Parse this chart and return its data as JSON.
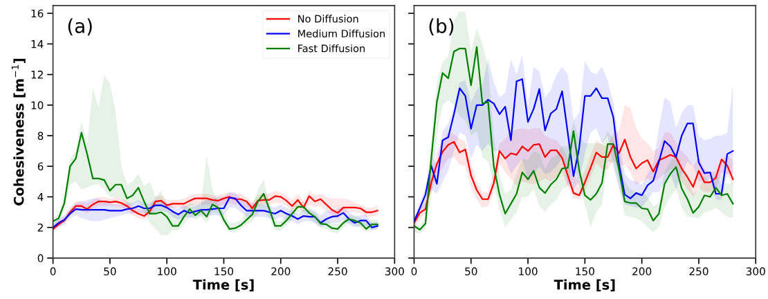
{
  "chart_data": [
    {
      "type": "line",
      "xlabel": "Time [s]",
      "ylabel": "Cohesiveness [m$^{−1}$]",
      "annotations": [
        "(a)"
      ],
      "xlim": [
        0,
        300
      ],
      "ylim": [
        0,
        16.5
      ],
      "xticks": [
        0,
        50,
        100,
        150,
        200,
        250,
        300
      ],
      "yticks": [
        0,
        2,
        4,
        6,
        8,
        10,
        12,
        14,
        16
      ],
      "grid": false,
      "legend": "top right",
      "marker": "none",
      "line_style": "solid",
      "x": [
        0,
        5,
        10,
        15,
        20,
        25,
        30,
        35,
        40,
        45,
        50,
        55,
        60,
        65,
        70,
        75,
        80,
        85,
        90,
        95,
        100,
        105,
        110,
        115,
        120,
        125,
        130,
        135,
        140,
        145,
        150,
        155,
        160,
        165,
        170,
        175,
        180,
        185,
        190,
        195,
        200,
        205,
        210,
        215,
        220,
        225,
        230,
        235,
        240,
        245,
        250,
        255,
        260,
        265,
        270,
        275,
        280,
        285
      ],
      "series": [
        {
          "name": "No Diffusion",
          "color": "#ff0000",
          "values": [
            1.9,
            2.2,
            2.45,
            3.0,
            3.4,
            3.4,
            3.2,
            3.5,
            3.7,
            3.7,
            3.65,
            3.7,
            3.6,
            3.4,
            3.1,
            2.9,
            2.75,
            3.05,
            3.7,
            3.75,
            3.45,
            3.55,
            3.55,
            3.55,
            3.75,
            3.9,
            3.9,
            3.9,
            3.8,
            3.75,
            3.9,
            4.0,
            3.85,
            3.85,
            3.7,
            3.25,
            3.75,
            3.8,
            3.8,
            4.05,
            4.0,
            3.75,
            3.4,
            3.8,
            3.3,
            4.05,
            3.7,
            3.85,
            3.5,
            3.15,
            2.95,
            3.3,
            3.3,
            3.3,
            3.25,
            3.0,
            3.0,
            3.1
          ],
          "lower": [
            1.7,
            2.0,
            2.3,
            2.8,
            3.1,
            3.1,
            2.9,
            3.2,
            3.4,
            3.4,
            3.4,
            3.4,
            3.3,
            3.1,
            2.8,
            2.6,
            2.5,
            2.8,
            3.4,
            3.4,
            3.2,
            3.3,
            3.3,
            3.2,
            3.4,
            3.5,
            3.5,
            3.5,
            3.5,
            3.4,
            3.5,
            3.6,
            3.5,
            3.5,
            3.3,
            2.9,
            3.4,
            3.5,
            3.5,
            3.6,
            3.6,
            3.4,
            3.1,
            3.4,
            3.0,
            3.5,
            3.3,
            3.4,
            3.1,
            2.8,
            2.6,
            3.0,
            3.0,
            3.0,
            2.9,
            2.7,
            2.7,
            2.8
          ],
          "upper": [
            2.1,
            2.5,
            2.7,
            3.3,
            3.7,
            3.7,
            3.6,
            3.8,
            4.0,
            4.0,
            3.9,
            4.0,
            3.9,
            3.7,
            3.4,
            3.2,
            3.1,
            3.4,
            4.0,
            4.1,
            3.8,
            3.8,
            3.8,
            3.9,
            4.1,
            4.2,
            4.2,
            4.2,
            4.1,
            4.1,
            4.2,
            4.3,
            4.2,
            4.2,
            4.0,
            3.6,
            4.1,
            4.2,
            4.2,
            4.4,
            4.3,
            4.1,
            3.8,
            4.2,
            3.7,
            4.4,
            4.1,
            4.2,
            4.0,
            3.9,
            3.9,
            3.9,
            3.8,
            3.6,
            3.5,
            3.3,
            3.3,
            3.4
          ]
        },
        {
          "name": "Medium Diffusion",
          "color": "#0000ff",
          "values": [
            2.0,
            2.3,
            2.5,
            2.9,
            3.2,
            3.15,
            3.15,
            3.15,
            3.15,
            3.15,
            3.1,
            3.1,
            3.1,
            3.2,
            3.25,
            3.4,
            3.25,
            3.25,
            3.45,
            3.45,
            3.3,
            3.05,
            2.85,
            3.1,
            2.95,
            3.05,
            3.15,
            3.15,
            3.2,
            3.25,
            3.25,
            3.95,
            3.9,
            3.45,
            3.1,
            3.1,
            3.1,
            3.1,
            3.0,
            2.9,
            3.1,
            2.9,
            2.75,
            2.55,
            2.75,
            2.7,
            2.7,
            2.3,
            2.55,
            2.7,
            2.75,
            2.95,
            2.55,
            2.3,
            2.45,
            2.45,
            2.0,
            2.1
          ],
          "lower": [
            1.8,
            2.0,
            2.2,
            2.6,
            2.8,
            2.6,
            2.5,
            2.4,
            2.4,
            2.5,
            2.6,
            2.7,
            2.8,
            2.9,
            2.9,
            3.0,
            2.9,
            2.8,
            3.0,
            3.1,
            3.0,
            2.7,
            2.5,
            2.7,
            2.6,
            2.7,
            2.8,
            2.8,
            2.8,
            2.8,
            2.8,
            3.3,
            3.3,
            3.0,
            2.7,
            2.7,
            2.7,
            2.7,
            2.6,
            2.5,
            2.7,
            2.5,
            2.4,
            2.2,
            2.4,
            2.4,
            2.3,
            2.0,
            2.2,
            2.3,
            2.3,
            2.5,
            2.2,
            2.0,
            2.1,
            2.1,
            1.8,
            1.9
          ],
          "upper": [
            2.2,
            2.6,
            2.8,
            3.2,
            3.6,
            3.7,
            3.8,
            3.9,
            3.9,
            3.7,
            3.6,
            3.5,
            3.5,
            3.6,
            3.6,
            3.8,
            3.6,
            3.6,
            3.8,
            3.8,
            3.6,
            3.4,
            3.2,
            3.5,
            3.3,
            3.4,
            3.6,
            3.8,
            3.9,
            4.0,
            4.0,
            4.3,
            4.3,
            3.9,
            3.6,
            3.6,
            3.5,
            3.5,
            3.4,
            3.3,
            3.5,
            3.3,
            3.1,
            2.9,
            3.1,
            3.2,
            3.1,
            2.8,
            3.1,
            3.1,
            3.2,
            3.4,
            3.0,
            2.7,
            2.8,
            2.8,
            2.3,
            2.4
          ]
        },
        {
          "name": "Fast Diffusion",
          "color": "#008000",
          "values": [
            2.4,
            2.6,
            3.6,
            6.0,
            6.5,
            8.2,
            6.8,
            5.2,
            5.2,
            5.1,
            4.4,
            4.8,
            4.8,
            3.9,
            4.1,
            4.6,
            3.7,
            2.9,
            2.9,
            3.0,
            2.7,
            2.1,
            2.1,
            2.7,
            3.2,
            2.8,
            3.1,
            2.7,
            3.5,
            3.3,
            2.5,
            1.9,
            1.95,
            2.15,
            2.5,
            2.85,
            3.7,
            4.2,
            3.2,
            2.1,
            2.1,
            2.45,
            2.9,
            3.35,
            3.35,
            2.95,
            2.7,
            2.25,
            2.2,
            1.95,
            1.9,
            2.3,
            2.55,
            2.45,
            2.3,
            1.9,
            2.2,
            2.2
          ],
          "lower": [
            2.1,
            2.4,
            3.2,
            4.8,
            5.0,
            4.5,
            4.6,
            4.8,
            4.8,
            4.5,
            4.0,
            4.0,
            3.9,
            3.4,
            3.5,
            3.7,
            3.0,
            2.3,
            1.9,
            1.5,
            1.5,
            1.8,
            1.8,
            2.2,
            2.7,
            2.5,
            2.7,
            2.3,
            3.0,
            2.9,
            2.2,
            1.7,
            1.7,
            1.9,
            2.2,
            2.4,
            2.9,
            3.3,
            2.6,
            1.8,
            1.8,
            2.1,
            2.5,
            3.0,
            3.0,
            2.6,
            2.3,
            2.0,
            1.9,
            1.7,
            1.6,
            2.0,
            2.3,
            2.1,
            2.0,
            1.7,
            1.9,
            1.9
          ],
          "upper": [
            2.6,
            2.9,
            4.0,
            6.5,
            7.0,
            8.9,
            7.5,
            11.1,
            9.8,
            12.0,
            11.4,
            9.6,
            6.0,
            4.8,
            5.0,
            5.5,
            4.7,
            5.0,
            4.0,
            4.4,
            3.4,
            3.0,
            2.8,
            3.3,
            3.6,
            3.5,
            3.5,
            6.7,
            4.5,
            3.6,
            2.9,
            2.3,
            2.3,
            2.5,
            3.0,
            3.5,
            4.5,
            5.1,
            3.6,
            2.5,
            2.4,
            2.8,
            3.3,
            3.7,
            3.7,
            3.2,
            3.0,
            2.5,
            2.5,
            2.3,
            2.2,
            2.5,
            2.8,
            2.8,
            2.6,
            2.3,
            2.5,
            2.5
          ]
        }
      ]
    },
    {
      "type": "line",
      "xlabel": "Time [s]",
      "annotations": [
        "(b)"
      ],
      "xlim": [
        0,
        300
      ],
      "ylim": [
        0,
        16.5
      ],
      "xticks": [
        0,
        50,
        100,
        150,
        200,
        250,
        300
      ],
      "yticks": [
        0,
        2,
        4,
        6,
        8,
        10,
        12,
        14,
        16
      ],
      "tick_labels": "x",
      "grid": false,
      "marker": "none",
      "line_style": "solid",
      "x": [
        0,
        5,
        10,
        15,
        20,
        25,
        30,
        35,
        40,
        45,
        50,
        55,
        60,
        65,
        70,
        75,
        80,
        85,
        90,
        95,
        100,
        105,
        110,
        115,
        120,
        125,
        130,
        135,
        140,
        145,
        150,
        155,
        160,
        165,
        170,
        175,
        180,
        185,
        190,
        195,
        200,
        205,
        210,
        215,
        220,
        225,
        230,
        235,
        240,
        245,
        250,
        255,
        260,
        265,
        270,
        275,
        280
      ],
      "series": [
        {
          "color": "#ff0000",
          "values": [
            2.3,
            2.95,
            3.2,
            4.9,
            6.15,
            6.95,
            7.4,
            7.6,
            6.9,
            7.1,
            5.4,
            4.45,
            3.85,
            3.85,
            4.9,
            7.0,
            6.5,
            6.85,
            6.75,
            7.3,
            7.0,
            7.4,
            7.45,
            6.6,
            7.05,
            7.05,
            6.55,
            5.4,
            4.25,
            4.1,
            4.95,
            5.9,
            6.9,
            6.6,
            6.6,
            7.4,
            6.85,
            7.75,
            6.6,
            5.85,
            6.2,
            6.4,
            5.65,
            6.4,
            6.55,
            6.75,
            6.6,
            5.85,
            5.3,
            4.65,
            5.7,
            4.95,
            4.95,
            5.25,
            6.45,
            6.05,
            5.15
          ],
          "lower": [
            2.0,
            2.5,
            2.9,
            4.3,
            5.4,
            5.9,
            6.5,
            6.6,
            6.1,
            6.0,
            4.6,
            3.8,
            3.3,
            3.4,
            4.3,
            6.2,
            5.6,
            5.2,
            4.7,
            5.0,
            4.9,
            4.8,
            5.0,
            5.2,
            5.0,
            5.3,
            5.6,
            4.7,
            3.9,
            3.8,
            4.5,
            5.3,
            6.2,
            5.8,
            5.8,
            6.4,
            6.0,
            6.1,
            5.6,
            4.8,
            5.0,
            5.2,
            5.0,
            5.2,
            5.5,
            5.8,
            5.8,
            5.0,
            4.5,
            4.0,
            4.6,
            4.3,
            4.3,
            4.5,
            5.6,
            5.5,
            4.7
          ],
          "upper": [
            2.5,
            3.3,
            3.7,
            5.3,
            6.9,
            7.7,
            8.2,
            8.1,
            7.8,
            7.6,
            6.2,
            5.0,
            4.3,
            4.3,
            5.6,
            7.5,
            7.8,
            8.3,
            8.4,
            8.5,
            8.4,
            8.5,
            8.5,
            8.0,
            7.8,
            7.7,
            7.3,
            6.5,
            5.5,
            5.0,
            5.7,
            6.7,
            7.7,
            7.4,
            7.3,
            8.2,
            8.3,
            10.0,
            9.8,
            8.5,
            7.8,
            7.5,
            7.0,
            7.2,
            8.2,
            8.2,
            7.6,
            7.0,
            6.6,
            6.0,
            6.6,
            5.8,
            5.6,
            5.7,
            6.5,
            6.7,
            6.4
          ]
        },
        {
          "color": "#0000ff",
          "values": [
            2.4,
            3.25,
            4.15,
            6.05,
            4.85,
            7.7,
            7.9,
            9.4,
            11.1,
            10.6,
            8.45,
            10.0,
            10.0,
            10.35,
            10.1,
            9.4,
            9.9,
            7.7,
            11.55,
            11.7,
            8.9,
            9.75,
            11.05,
            8.35,
            9.45,
            9.75,
            10.9,
            8.15,
            5.35,
            7.2,
            10.6,
            10.6,
            11.1,
            10.45,
            10.45,
            9.2,
            6.1,
            4.15,
            3.9,
            4.25,
            4.1,
            4.75,
            5.05,
            6.3,
            7.65,
            7.3,
            6.6,
            8.0,
            8.8,
            8.8,
            6.25,
            5.55,
            5.6,
            4.2,
            4.2,
            6.8,
            7.0
          ],
          "lower": [
            2.0,
            2.8,
            3.4,
            4.5,
            4.2,
            5.0,
            5.7,
            7.0,
            8.2,
            8.0,
            6.5,
            7.4,
            7.0,
            7.5,
            7.0,
            7.0,
            6.5,
            5.5,
            6.0,
            6.5,
            5.0,
            5.5,
            6.0,
            5.5,
            5.6,
            6.0,
            6.5,
            4.8,
            4.5,
            5.0,
            6.8,
            8.2,
            8.5,
            7.5,
            8.0,
            6.0,
            4.5,
            3.5,
            3.4,
            3.3,
            3.3,
            3.8,
            4.3,
            4.3,
            5.0,
            5.5,
            4.5,
            5.5,
            6.3,
            6.0,
            5.0,
            5.0,
            5.2,
            3.8,
            3.8,
            5.5,
            5.5
          ],
          "upper": [
            2.6,
            3.6,
            4.6,
            6.8,
            6.0,
            8.3,
            8.8,
            9.8,
            11.5,
            11.6,
            10.2,
            11.0,
            11.4,
            13.0,
            11.5,
            10.5,
            10.8,
            13.0,
            12.0,
            13.3,
            10.0,
            12.5,
            12.2,
            10.5,
            11.0,
            12.0,
            12.5,
            12.0,
            9.0,
            9.5,
            12.9,
            12.2,
            12.0,
            12.5,
            11.6,
            10.2,
            7.5,
            5.5,
            5.1,
            5.0,
            4.8,
            5.5,
            6.2,
            8.5,
            10.5,
            10.2,
            8.5,
            9.5,
            10.0,
            10.0,
            8.0,
            7.7,
            7.8,
            8.0,
            8.0,
            8.2,
            11.4
          ]
        },
        {
          "color": "#008000",
          "values": [
            2.1,
            1.85,
            2.25,
            6.45,
            10.2,
            12.1,
            11.75,
            13.5,
            13.7,
            13.7,
            11.3,
            13.8,
            10.1,
            10.2,
            6.0,
            4.15,
            2.9,
            3.55,
            4.2,
            5.6,
            5.15,
            5.7,
            4.6,
            4.25,
            4.8,
            5.15,
            5.85,
            5.9,
            8.3,
            5.75,
            4.1,
            3.8,
            4.2,
            4.9,
            7.45,
            7.45,
            5.75,
            3.7,
            3.6,
            3.6,
            3.25,
            3.2,
            2.45,
            2.9,
            4.85,
            5.5,
            5.95,
            4.55,
            3.85,
            2.95,
            3.35,
            4.1,
            4.0,
            4.6,
            4.1,
            4.2,
            3.55
          ],
          "lower": [
            1.7,
            1.6,
            1.9,
            4.0,
            8.0,
            10.0,
            10.3,
            10.0,
            9.3,
            9.0,
            8.0,
            8.3,
            6.6,
            6.3,
            4.7,
            3.2,
            2.0,
            2.5,
            3.0,
            4.0,
            4.0,
            4.5,
            3.4,
            3.0,
            3.5,
            3.8,
            4.5,
            4.7,
            6.6,
            4.7,
            3.5,
            2.0,
            3.0,
            3.5,
            6.3,
            6.2,
            4.8,
            2.8,
            2.7,
            2.6,
            2.4,
            2.0,
            1.7,
            2.0,
            3.3,
            4.0,
            4.5,
            3.3,
            2.7,
            2.7,
            2.6,
            3.0,
            3.1,
            3.3,
            3.0,
            2.7,
            2.6
          ],
          "upper": [
            2.3,
            2.1,
            2.6,
            7.5,
            11.5,
            12.8,
            13.2,
            15.5,
            16.1,
            16.1,
            13.5,
            15.0,
            14.0,
            12.5,
            8.0,
            5.5,
            4.2,
            4.5,
            5.5,
            6.5,
            6.4,
            7.0,
            6.8,
            5.8,
            6.5,
            6.7,
            7.3,
            7.3,
            8.9,
            7.9,
            7.5,
            7.5,
            7.5,
            7.5,
            8.3,
            7.8,
            6.7,
            5.0,
            4.5,
            4.3,
            4.3,
            4.0,
            3.4,
            3.6,
            5.6,
            6.3,
            6.8,
            6.0,
            5.2,
            4.2,
            4.5,
            5.3,
            5.0,
            5.5,
            4.8,
            4.9,
            4.9
          ]
        }
      ]
    }
  ]
}
